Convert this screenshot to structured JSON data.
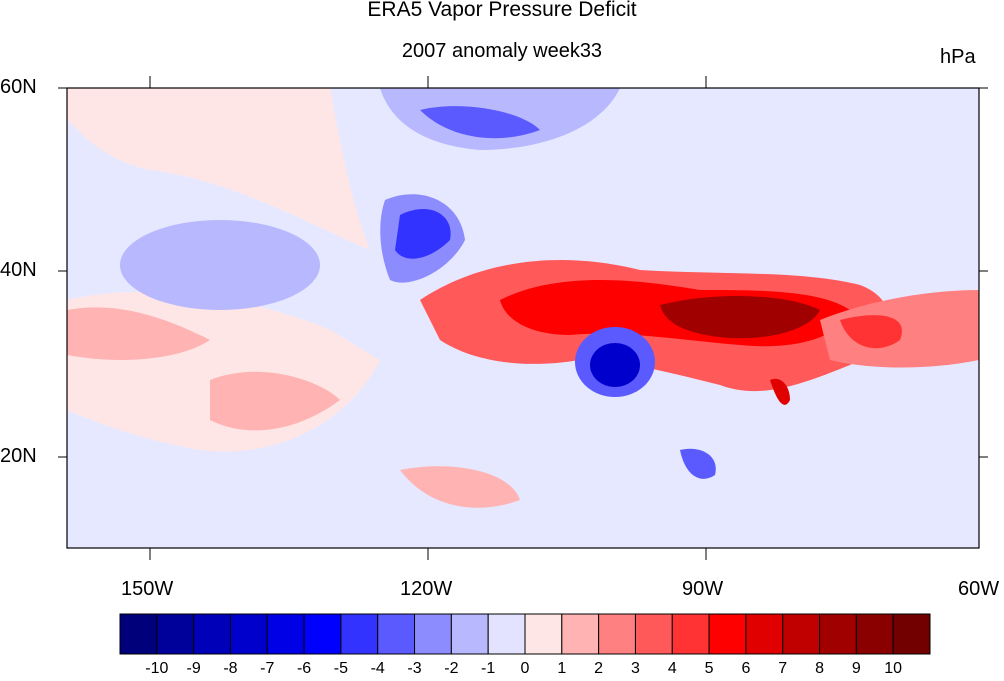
{
  "title": "ERA5 Vapor Pressure Deficit",
  "subtitle": "2007 anomaly week33",
  "units": "hPa",
  "lat_labels": [
    "60N",
    "40N",
    "20N"
  ],
  "lon_labels": [
    "150W",
    "120W",
    "90W",
    "60W"
  ],
  "colorbar": {
    "labels": [
      "-10",
      "-9",
      "-8",
      "-7",
      "-6",
      "-5",
      "-4",
      "-3",
      "-2",
      "-1",
      "0",
      "1",
      "2",
      "3",
      "4",
      "5",
      "6",
      "7",
      "8",
      "9",
      "10"
    ],
    "colors": [
      "#00007a",
      "#00009b",
      "#0000b8",
      "#0000cc",
      "#0000e6",
      "#0000ff",
      "#3333ff",
      "#5a5aff",
      "#8c8cff",
      "#b8b8ff",
      "#e3e3ff",
      "#ffe6e6",
      "#ffb3b3",
      "#ff8080",
      "#ff5959",
      "#ff3333",
      "#ff0000",
      "#e00000",
      "#c00000",
      "#a00000",
      "#8a0000",
      "#720000"
    ]
  },
  "map": {
    "background_color": "#e6e8ff",
    "region_west_us_color": "#0000ff",
    "region_texas_color": "#0000cc",
    "region_southeast_color": "#c00000",
    "region_plains_color": "#ff0000"
  }
}
